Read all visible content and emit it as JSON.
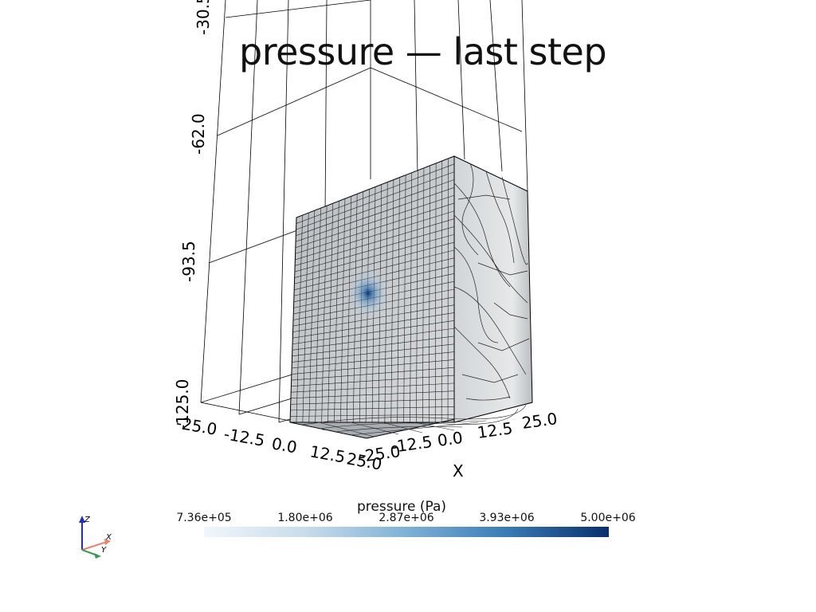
{
  "title": "pressure — last step",
  "colorbar": {
    "title": "pressure (Pa)",
    "ticks": [
      "7.36e+05",
      "1.80e+06",
      "2.87e+06",
      "3.93e+06",
      "5.00e+06"
    ],
    "colors": [
      "#f1f6fb",
      "#c8dceb",
      "#7fb1d6",
      "#3a7ab5",
      "#08306b"
    ]
  },
  "axes": {
    "z_ticks": [
      "-30.5",
      "-62.0",
      "-93.5",
      "-125.0"
    ],
    "y_ticks": [
      "-25.0",
      "-12.5",
      "0.0",
      "12.5",
      "25.0"
    ],
    "x_ticks": [
      "-25.0",
      "-12.5",
      "0.0",
      "12.5",
      "25.0"
    ],
    "x_label": "X"
  },
  "orientation_widget": {
    "z": "Z",
    "x": "X",
    "y": "Y"
  }
}
